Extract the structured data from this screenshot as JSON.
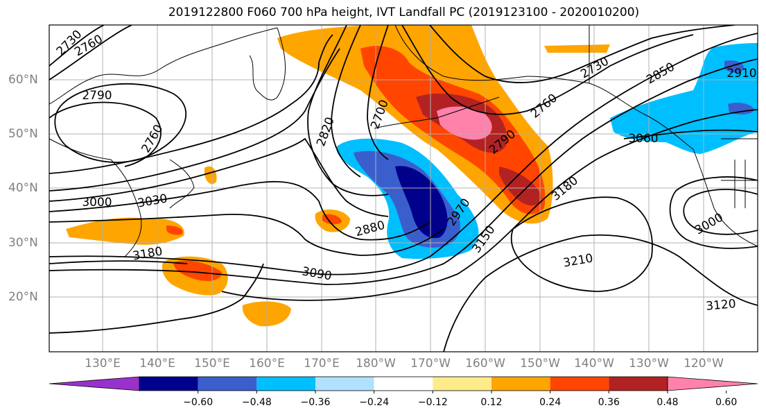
{
  "title": "2019122800 F060 700 hPa height, IVT Landfall PC (2019123100 - 2020010200)",
  "longitude_labels": [
    "130°E",
    "140°E",
    "150°E",
    "160°E",
    "170°E",
    "180°W",
    "170°W",
    "160°W",
    "150°W",
    "140°W",
    "130°W",
    "120°W"
  ],
  "latitude_labels": [
    "60°N",
    "50°N",
    "40°N",
    "30°N",
    "20°N"
  ],
  "colorbar": {
    "tick_labels": [
      "−0.60",
      "−0.48",
      "−0.36",
      "−0.24",
      "−0.12",
      "0.12",
      "0.24",
      "0.36",
      "0.48",
      "0.60"
    ],
    "colors": [
      "#9932cc",
      "#00008b",
      "#3a5fcd",
      "#00bfff",
      "#b0e2ff",
      "#ffffff",
      "#ffeb8a",
      "#ffa500",
      "#ff4500",
      "#b22222",
      "#ff82ab"
    ]
  },
  "contour_labels": [
    "2730",
    "2760",
    "2790",
    "2760",
    "2820",
    "2700",
    "2790",
    "2760",
    "2730",
    "2850",
    "2910",
    "3060",
    "3000",
    "3030",
    "3180",
    "2880",
    "2970",
    "3150",
    "3180",
    "3210",
    "3090",
    "3120",
    "3000"
  ],
  "colors": {
    "contour": "#000000",
    "coast": "#000000",
    "grid": "#b0b0b0",
    "axis_label": "#808080"
  }
}
